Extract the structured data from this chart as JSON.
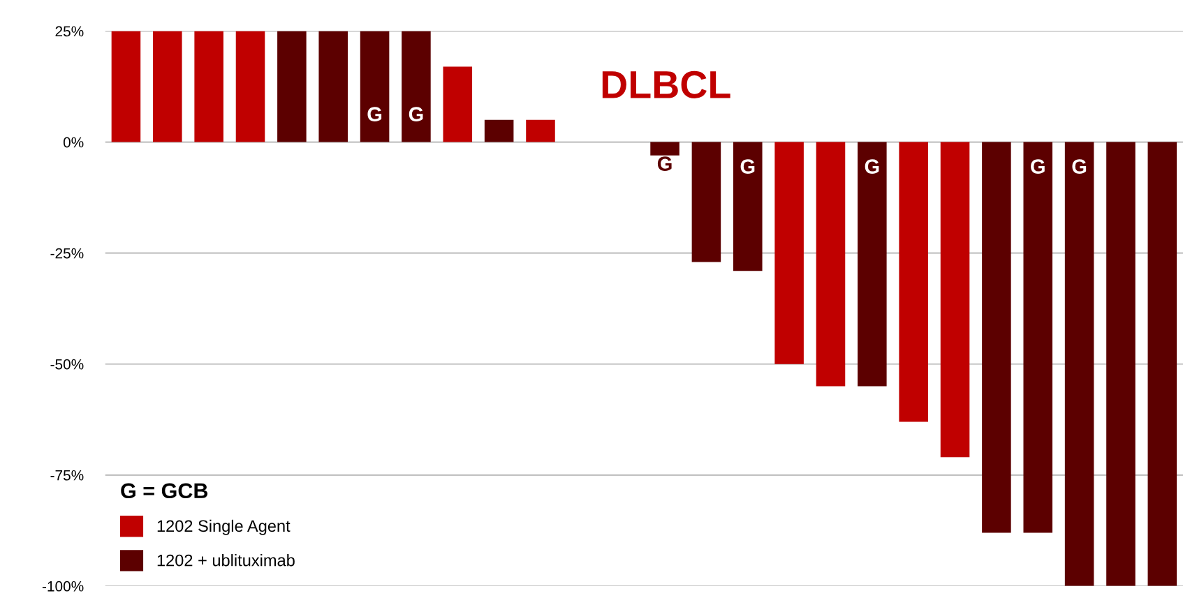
{
  "chart_data": {
    "type": "bar",
    "title": "DLBCL",
    "categories": [
      null,
      null,
      null,
      null,
      null,
      null,
      null,
      null,
      null,
      null,
      null,
      null,
      null,
      null,
      null,
      null,
      null,
      null,
      null,
      null,
      null,
      null,
      null,
      null,
      null,
      null
    ],
    "series": [
      {
        "name": "1202 Single Agent",
        "color": "#c00000",
        "values": [
          25,
          25,
          25,
          25,
          null,
          null,
          null,
          null,
          17,
          null,
          5,
          null,
          null,
          null,
          null,
          null,
          -50,
          -55,
          null,
          -63,
          -71,
          null,
          null,
          null,
          null,
          null
        ],
        "value_labels": [
          null,
          null,
          null,
          null,
          null,
          null,
          null,
          null,
          null,
          null,
          null,
          null,
          null,
          null,
          null,
          null,
          null,
          null,
          null,
          null,
          null,
          null,
          null,
          null,
          null,
          null
        ]
      },
      {
        "name": "1202 + ublituximab",
        "color": "#5c0000",
        "values": [
          null,
          null,
          null,
          null,
          25,
          25,
          25,
          25,
          null,
          5,
          null,
          null,
          null,
          -3,
          -27,
          -29,
          null,
          null,
          -55,
          null,
          null,
          -88,
          -88,
          -100,
          -100,
          -100
        ],
        "value_labels": [
          null,
          null,
          null,
          null,
          null,
          null,
          "G",
          "G",
          null,
          null,
          null,
          null,
          null,
          "G",
          null,
          "G",
          null,
          null,
          "G",
          null,
          null,
          null,
          "G",
          "G",
          null,
          null
        ]
      }
    ],
    "ylim": [
      -100,
      25
    ],
    "yticks": [
      {
        "value": 25,
        "label": "25%"
      },
      {
        "value": 0,
        "label": "0%"
      },
      {
        "value": -25,
        "label": "-25%"
      },
      {
        "value": -50,
        "label": "-50%"
      },
      {
        "value": -75,
        "label": "-75%"
      },
      {
        "value": -100,
        "label": "-100%"
      }
    ],
    "grid": "y",
    "legend": "bottom left",
    "legend_title": "G = GCB"
  }
}
